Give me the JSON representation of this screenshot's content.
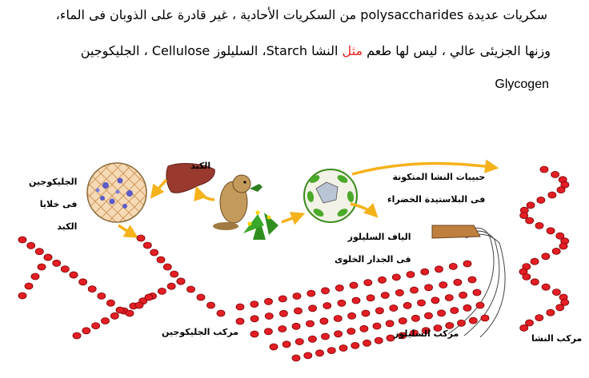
{
  "paragraph": {
    "line1": "سكريات عديدة  polysaccharides من السكريات الأحادية ، غير قادرة على الذوبان فى الماء،",
    "line2_before": "وزنها الجزيئى عالي ، ليس لها طعم ",
    "line2_highlight": "مثل",
    "line2_after": " النشا Starch، السليلوز Cellulose ، الجليكوجين",
    "line3": "Glycogen"
  },
  "labels": {
    "liver": "الكبد",
    "glycogen_line1": "الجليكوجين",
    "glycogen_line2": "فى خلايا",
    "glycogen_line3": "الكبد",
    "starch_line1": "حبيبات النشا المتكونة",
    "starch_line2": "فى البلاستيدة الخضراء",
    "cellulose_line1": "الياف السليلوز",
    "cellulose_line2": "فى الجدار الخلوى",
    "glycogen_compound": "مركب الجليكوجين",
    "cellulose_compound": "مركب السليلوز",
    "starch_compound": "مركب النشا"
  },
  "colors": {
    "bead_fill": "#e31e24",
    "bead_stroke": "#7a0000",
    "arrow": "#f5b21b",
    "liver": "#9a3a2e",
    "highlight_text": "#e8261e"
  }
}
